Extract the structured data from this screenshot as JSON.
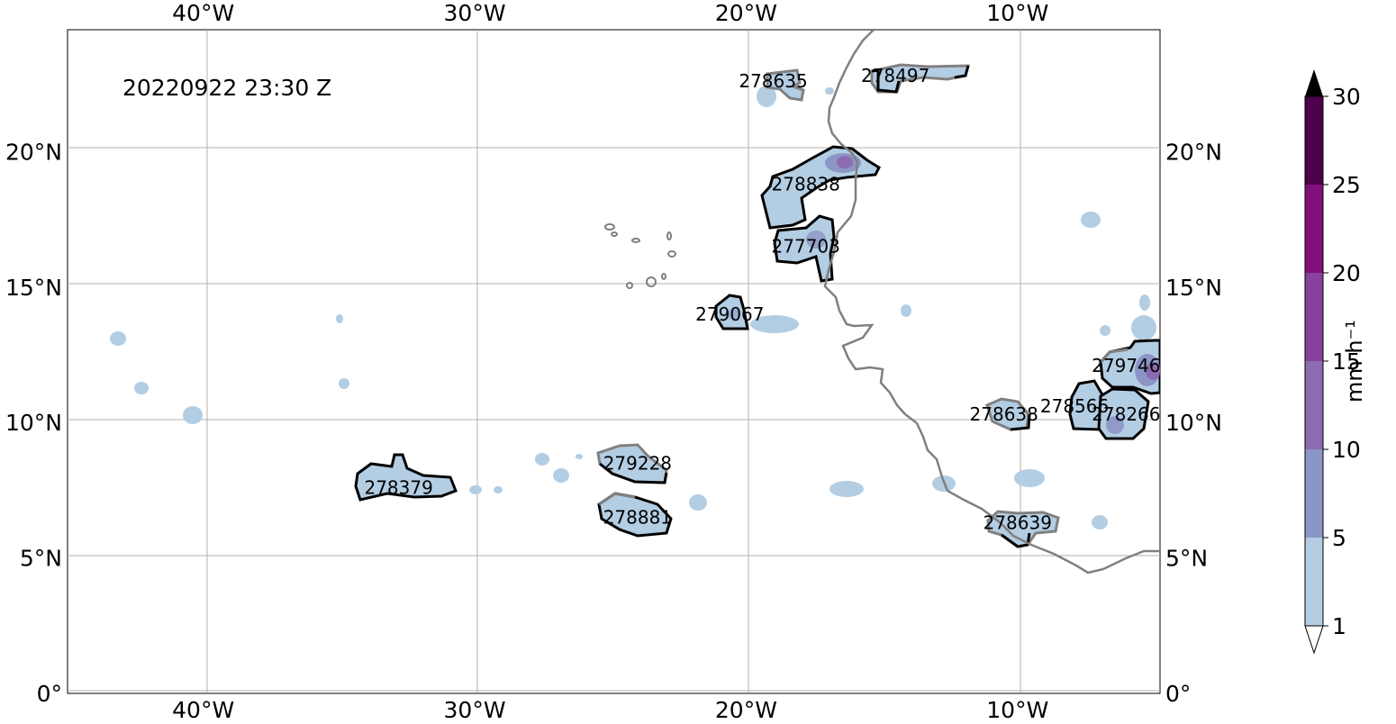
{
  "timestamp": "20220922 23:30 Z",
  "axes": {
    "top_labels": [
      "40°W",
      "30°W",
      "20°W",
      "10°W"
    ],
    "bottom_labels": [
      "40°W",
      "30°W",
      "20°W",
      "10°W"
    ],
    "left_labels": [
      "20°N",
      "15°N",
      "10°N",
      "5°N",
      "0°"
    ],
    "right_labels": [
      "20°N",
      "15°N",
      "10°N",
      "5°N",
      "0°"
    ],
    "lon_range": [
      -45,
      -4.75
    ],
    "lat_range": [
      0,
      24.5
    ]
  },
  "colorbar": {
    "label": "mm h⁻¹",
    "ticks": [
      "1",
      "5",
      "10",
      "15",
      "20",
      "25",
      "30"
    ],
    "colors": [
      "#b3cde3",
      "#8c96c6",
      "#8c6bb1",
      "#88419d",
      "#810f7c",
      "#4d004b"
    ],
    "extend": "both"
  },
  "colors": {
    "coastline": "#808080",
    "track_current": "#000000",
    "track_other": "#808080",
    "precip_light": "#b3cde3"
  },
  "tracks": [
    {
      "id": "278635",
      "lon": -19.0,
      "lat": 22.6
    },
    {
      "id": "278497",
      "lon": -14.5,
      "lat": 22.8
    },
    {
      "id": "278838",
      "lon": -17.8,
      "lat": 18.8
    },
    {
      "id": "277703",
      "lon": -17.8,
      "lat": 16.5
    },
    {
      "id": "279067",
      "lon": -20.6,
      "lat": 14.0
    },
    {
      "id": "279746",
      "lon": -6.0,
      "lat": 12.1
    },
    {
      "id": "278566",
      "lon": -7.9,
      "lat": 10.6
    },
    {
      "id": "278266",
      "lon": -6.0,
      "lat": 10.3
    },
    {
      "id": "278638",
      "lon": -10.5,
      "lat": 10.3
    },
    {
      "id": "279228",
      "lon": -24.0,
      "lat": 8.5
    },
    {
      "id": "278379",
      "lon": -32.8,
      "lat": 7.6
    },
    {
      "id": "278881",
      "lon": -24.0,
      "lat": 6.5
    },
    {
      "id": "278639",
      "lon": -10.0,
      "lat": 6.3
    }
  ]
}
